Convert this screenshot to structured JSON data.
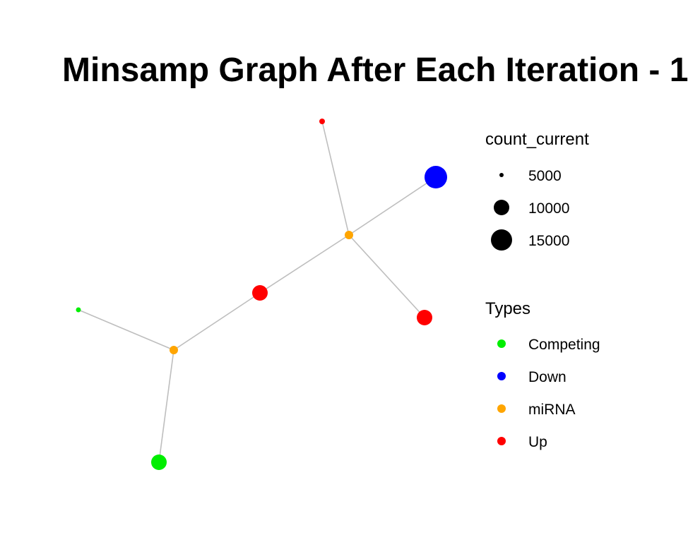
{
  "title": "Minsamp Graph After Each Iteration - 1",
  "graph": {
    "edge_color": "#bebebe",
    "nodes": [
      {
        "id": "n1",
        "type": "Up"
      },
      {
        "id": "n2",
        "type": "Down"
      },
      {
        "id": "n3",
        "type": "miRNA"
      },
      {
        "id": "n4",
        "type": "Up"
      },
      {
        "id": "n5",
        "type": "Up"
      },
      {
        "id": "n6",
        "type": "Competing"
      },
      {
        "id": "n7",
        "type": "miRNA"
      },
      {
        "id": "n8",
        "type": "Competing"
      }
    ],
    "edges": [
      [
        "n1",
        "n3"
      ],
      [
        "n2",
        "n3"
      ],
      [
        "n3",
        "n4"
      ],
      [
        "n3",
        "n5"
      ],
      [
        "n4",
        "n7"
      ],
      [
        "n6",
        "n7"
      ],
      [
        "n7",
        "n8"
      ]
    ]
  },
  "legend_size": {
    "title": "count_current",
    "items": [
      {
        "label": "5000",
        "value": 5000
      },
      {
        "label": "10000",
        "value": 10000
      },
      {
        "label": "15000",
        "value": 15000
      }
    ]
  },
  "legend_types": {
    "title": "Types",
    "items": [
      {
        "label": "Competing",
        "color": "#00ee00"
      },
      {
        "label": "Down",
        "color": "#0000ff"
      },
      {
        "label": "miRNA",
        "color": "#ffa500"
      },
      {
        "label": "Up",
        "color": "#ff0000"
      }
    ]
  }
}
